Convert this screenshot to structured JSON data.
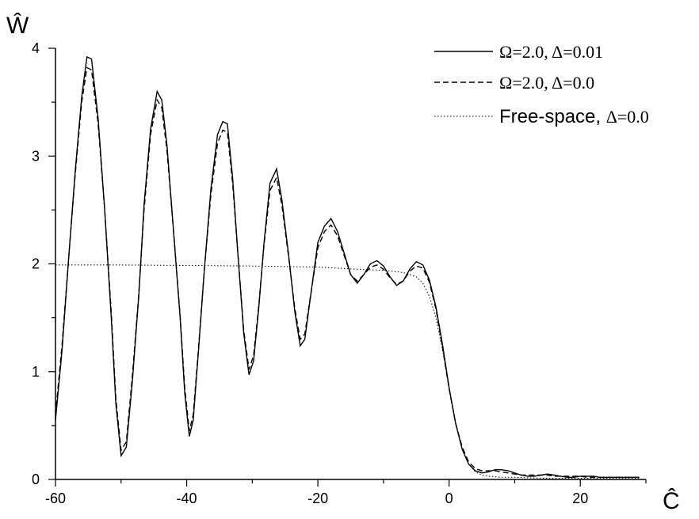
{
  "chart_data": {
    "type": "line",
    "title": "",
    "xlabel": "Ĉ",
    "ylabel": "Ŵ",
    "xlim": [
      -60,
      30
    ],
    "ylim": [
      0,
      4
    ],
    "xticks": [
      -60,
      -40,
      -20,
      0,
      20
    ],
    "xtick_labels": [
      "-60",
      "-40",
      "-20",
      "0",
      "20"
    ],
    "yticks": [
      0,
      1,
      2,
      3,
      4
    ],
    "ytick_labels": [
      "0",
      "1",
      "2",
      "3",
      "4"
    ],
    "grid": false,
    "legend_position": "top-right",
    "series": [
      {
        "name": "Ω=2.0, Δ=0.01",
        "style": "solid",
        "legend_sym": "Ω=2.0, Δ=0.01",
        "points": [
          [
            -60,
            0.55
          ],
          [
            -59,
            1.2
          ],
          [
            -58,
            2.05
          ],
          [
            -57,
            2.85
          ],
          [
            -56,
            3.55
          ],
          [
            -55.2,
            3.92
          ],
          [
            -54.5,
            3.9
          ],
          [
            -53.5,
            3.35
          ],
          [
            -52.5,
            2.5
          ],
          [
            -51.5,
            1.5
          ],
          [
            -50.8,
            0.7
          ],
          [
            -50,
            0.22
          ],
          [
            -49.2,
            0.3
          ],
          [
            -48.3,
            0.9
          ],
          [
            -47.3,
            1.7
          ],
          [
            -46.5,
            2.55
          ],
          [
            -45.5,
            3.25
          ],
          [
            -44.5,
            3.6
          ],
          [
            -43.8,
            3.52
          ],
          [
            -43,
            3.1
          ],
          [
            -42,
            2.3
          ],
          [
            -41,
            1.5
          ],
          [
            -40.3,
            0.8
          ],
          [
            -39.6,
            0.4
          ],
          [
            -39,
            0.55
          ],
          [
            -38.2,
            1.2
          ],
          [
            -37.3,
            1.95
          ],
          [
            -36.3,
            2.7
          ],
          [
            -35.3,
            3.2
          ],
          [
            -34.5,
            3.32
          ],
          [
            -33.8,
            3.3
          ],
          [
            -33,
            2.8
          ],
          [
            -32.2,
            2.1
          ],
          [
            -31.3,
            1.35
          ],
          [
            -30.5,
            0.97
          ],
          [
            -29.8,
            1.1
          ],
          [
            -29,
            1.6
          ],
          [
            -28.2,
            2.2
          ],
          [
            -27.3,
            2.75
          ],
          [
            -26.3,
            2.88
          ],
          [
            -25.5,
            2.6
          ],
          [
            -24.5,
            2.1
          ],
          [
            -23.5,
            1.55
          ],
          [
            -22.7,
            1.24
          ],
          [
            -22,
            1.3
          ],
          [
            -21,
            1.75
          ],
          [
            -20,
            2.2
          ],
          [
            -19,
            2.35
          ],
          [
            -18,
            2.42
          ],
          [
            -17,
            2.3
          ],
          [
            -16,
            2.1
          ],
          [
            -15,
            1.9
          ],
          [
            -14,
            1.82
          ],
          [
            -13,
            1.9
          ],
          [
            -12,
            2.0
          ],
          [
            -11,
            2.03
          ],
          [
            -10,
            1.98
          ],
          [
            -9,
            1.88
          ],
          [
            -8,
            1.8
          ],
          [
            -7,
            1.84
          ],
          [
            -6,
            1.95
          ],
          [
            -5,
            2.02
          ],
          [
            -4,
            1.99
          ],
          [
            -3,
            1.85
          ],
          [
            -2,
            1.6
          ],
          [
            -1,
            1.25
          ],
          [
            0,
            0.85
          ],
          [
            1,
            0.52
          ],
          [
            2,
            0.28
          ],
          [
            3,
            0.14
          ],
          [
            4,
            0.08
          ],
          [
            5,
            0.06
          ],
          [
            6,
            0.07
          ],
          [
            7,
            0.09
          ],
          [
            8,
            0.09
          ],
          [
            9,
            0.08
          ],
          [
            10,
            0.06
          ],
          [
            11,
            0.04
          ],
          [
            12,
            0.03
          ],
          [
            13,
            0.03
          ],
          [
            14,
            0.04
          ],
          [
            15,
            0.05
          ],
          [
            16,
            0.04
          ],
          [
            17,
            0.03
          ],
          [
            18,
            0.02
          ],
          [
            19,
            0.02
          ],
          [
            20,
            0.03
          ],
          [
            21,
            0.03
          ],
          [
            22,
            0.03
          ],
          [
            23,
            0.02
          ],
          [
            24,
            0.02
          ],
          [
            25,
            0.02
          ],
          [
            26,
            0.02
          ],
          [
            27,
            0.02
          ],
          [
            28,
            0.02
          ],
          [
            29,
            0.02
          ]
        ]
      },
      {
        "name": "Ω=2.0, Δ=0.0",
        "style": "dashed",
        "legend_sym": "Ω=2.0, Δ=0.0",
        "points": [
          [
            -60,
            0.6
          ],
          [
            -59,
            1.25
          ],
          [
            -58,
            2.05
          ],
          [
            -57,
            2.82
          ],
          [
            -56,
            3.5
          ],
          [
            -55.2,
            3.82
          ],
          [
            -54.5,
            3.8
          ],
          [
            -53.5,
            3.3
          ],
          [
            -52.5,
            2.5
          ],
          [
            -51.5,
            1.55
          ],
          [
            -50.8,
            0.75
          ],
          [
            -50,
            0.27
          ],
          [
            -49.2,
            0.35
          ],
          [
            -48.3,
            0.95
          ],
          [
            -47.3,
            1.72
          ],
          [
            -46.5,
            2.5
          ],
          [
            -45.5,
            3.2
          ],
          [
            -44.5,
            3.52
          ],
          [
            -43.8,
            3.45
          ],
          [
            -43,
            3.05
          ],
          [
            -42,
            2.3
          ],
          [
            -41,
            1.52
          ],
          [
            -40.3,
            0.85
          ],
          [
            -39.6,
            0.45
          ],
          [
            -39,
            0.6
          ],
          [
            -38.2,
            1.22
          ],
          [
            -37.3,
            1.95
          ],
          [
            -36.3,
            2.65
          ],
          [
            -35.3,
            3.12
          ],
          [
            -34.5,
            3.24
          ],
          [
            -33.8,
            3.22
          ],
          [
            -33,
            2.75
          ],
          [
            -32.2,
            2.1
          ],
          [
            -31.3,
            1.38
          ],
          [
            -30.5,
            1.02
          ],
          [
            -29.8,
            1.15
          ],
          [
            -29,
            1.62
          ],
          [
            -28.2,
            2.18
          ],
          [
            -27.3,
            2.68
          ],
          [
            -26.3,
            2.8
          ],
          [
            -25.5,
            2.55
          ],
          [
            -24.5,
            2.08
          ],
          [
            -23.5,
            1.58
          ],
          [
            -22.7,
            1.3
          ],
          [
            -22,
            1.35
          ],
          [
            -21,
            1.75
          ],
          [
            -20,
            2.15
          ],
          [
            -19,
            2.3
          ],
          [
            -18,
            2.36
          ],
          [
            -17,
            2.26
          ],
          [
            -16,
            2.08
          ],
          [
            -15,
            1.9
          ],
          [
            -14,
            1.84
          ],
          [
            -13,
            1.9
          ],
          [
            -12,
            1.97
          ],
          [
            -11,
            1.99
          ],
          [
            -10,
            1.95
          ],
          [
            -9,
            1.87
          ],
          [
            -8,
            1.81
          ],
          [
            -7,
            1.84
          ],
          [
            -6,
            1.93
          ],
          [
            -5,
            1.98
          ],
          [
            -4,
            1.96
          ],
          [
            -3,
            1.83
          ],
          [
            -2,
            1.58
          ],
          [
            -1,
            1.22
          ],
          [
            0,
            0.84
          ],
          [
            1,
            0.52
          ],
          [
            2,
            0.3
          ],
          [
            3,
            0.16
          ],
          [
            4,
            0.1
          ],
          [
            5,
            0.08
          ],
          [
            6,
            0.08
          ],
          [
            7,
            0.08
          ],
          [
            8,
            0.07
          ],
          [
            9,
            0.06
          ],
          [
            10,
            0.05
          ],
          [
            11,
            0.04
          ],
          [
            12,
            0.04
          ],
          [
            13,
            0.04
          ],
          [
            14,
            0.04
          ],
          [
            15,
            0.04
          ],
          [
            16,
            0.03
          ],
          [
            17,
            0.03
          ],
          [
            18,
            0.03
          ],
          [
            19,
            0.03
          ],
          [
            20,
            0.03
          ],
          [
            21,
            0.02
          ],
          [
            22,
            0.02
          ],
          [
            23,
            0.02
          ],
          [
            24,
            0.02
          ],
          [
            25,
            0.02
          ],
          [
            26,
            0.02
          ],
          [
            27,
            0.02
          ],
          [
            28,
            0.02
          ],
          [
            29,
            0.02
          ]
        ]
      },
      {
        "name": "Free-space, Δ=0.0",
        "style": "dotted",
        "legend_sans": "Free-space, ",
        "legend_sym": "Δ=0.0",
        "points": [
          [
            -60,
            1.99
          ],
          [
            -50,
            1.99
          ],
          [
            -40,
            1.985
          ],
          [
            -30,
            1.98
          ],
          [
            -20,
            1.97
          ],
          [
            -14,
            1.95
          ],
          [
            -10,
            1.94
          ],
          [
            -7,
            1.92
          ],
          [
            -5,
            1.88
          ],
          [
            -4,
            1.82
          ],
          [
            -3,
            1.7
          ],
          [
            -2,
            1.5
          ],
          [
            -1,
            1.2
          ],
          [
            0,
            0.85
          ],
          [
            1,
            0.52
          ],
          [
            2,
            0.28
          ],
          [
            3,
            0.14
          ],
          [
            4,
            0.07
          ],
          [
            5,
            0.04
          ],
          [
            6,
            0.03
          ],
          [
            8,
            0.02
          ],
          [
            10,
            0.02
          ],
          [
            15,
            0.01
          ],
          [
            20,
            0.01
          ],
          [
            25,
            0.01
          ],
          [
            29,
            0.01
          ]
        ]
      }
    ]
  }
}
